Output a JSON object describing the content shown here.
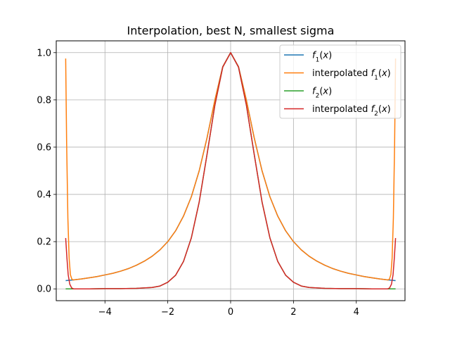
{
  "chart_data": {
    "type": "line",
    "title": "Interpolation, best N, smallest sigma",
    "xlabel": "",
    "ylabel": "",
    "xlim": [
      -5.55,
      5.55
    ],
    "ylim": [
      -0.05,
      1.05
    ],
    "grid": true,
    "legend_position": "top-right",
    "x_ticks": [
      -4,
      -2,
      0,
      2,
      4
    ],
    "x_tick_labels": [
      "−4",
      "−2",
      "0",
      "2",
      "4"
    ],
    "y_ticks": [
      0.0,
      0.2,
      0.4,
      0.6,
      0.8,
      1.0
    ],
    "y_tick_labels": [
      "0.0",
      "0.2",
      "0.4",
      "0.6",
      "0.8",
      "1.0"
    ],
    "series": [
      {
        "name": "f1(x)",
        "legend_main": "f",
        "legend_sub": "1",
        "legend_rest": "(x)",
        "color": "#1f77b4",
        "x": [
          -5.25,
          -5.0,
          -4.75,
          -4.5,
          -4.25,
          -4.0,
          -3.75,
          -3.5,
          -3.25,
          -3.0,
          -2.75,
          -2.5,
          -2.25,
          -2.0,
          -1.75,
          -1.5,
          -1.25,
          -1.0,
          -0.75,
          -0.5,
          -0.25,
          0.0,
          0.25,
          0.5,
          0.75,
          1.0,
          1.25,
          1.5,
          1.75,
          2.0,
          2.25,
          2.5,
          2.75,
          3.0,
          3.25,
          3.5,
          3.75,
          4.0,
          4.25,
          4.5,
          4.75,
          5.0,
          5.25
        ],
        "y": [
          0.035,
          0.038,
          0.042,
          0.047,
          0.052,
          0.059,
          0.066,
          0.075,
          0.086,
          0.1,
          0.117,
          0.138,
          0.165,
          0.2,
          0.246,
          0.308,
          0.39,
          0.5,
          0.64,
          0.8,
          0.941,
          1.0,
          0.941,
          0.8,
          0.64,
          0.5,
          0.39,
          0.308,
          0.246,
          0.2,
          0.165,
          0.138,
          0.117,
          0.1,
          0.086,
          0.075,
          0.066,
          0.059,
          0.052,
          0.047,
          0.042,
          0.038,
          0.035
        ]
      },
      {
        "name": "interpolated f1(x)",
        "legend_main": "interpolated f",
        "legend_sub": "1",
        "legend_rest": "(x)",
        "color": "#ff7f0e",
        "x": [
          -5.25,
          -5.22,
          -5.18,
          -5.14,
          -5.1,
          -5.05,
          -5.0,
          -4.75,
          -4.5,
          -4.25,
          -4.0,
          -3.75,
          -3.5,
          -3.25,
          -3.0,
          -2.75,
          -2.5,
          -2.25,
          -2.0,
          -1.75,
          -1.5,
          -1.25,
          -1.0,
          -0.75,
          -0.5,
          -0.25,
          0.0,
          0.25,
          0.5,
          0.75,
          1.0,
          1.25,
          1.5,
          1.75,
          2.0,
          2.25,
          2.5,
          2.75,
          3.0,
          3.25,
          3.5,
          3.75,
          4.0,
          4.25,
          4.5,
          4.75,
          5.0,
          5.05,
          5.1,
          5.14,
          5.18,
          5.22,
          5.25
        ],
        "y": [
          0.975,
          0.62,
          0.3,
          0.13,
          0.06,
          0.04,
          0.038,
          0.042,
          0.047,
          0.052,
          0.059,
          0.066,
          0.075,
          0.086,
          0.1,
          0.117,
          0.138,
          0.165,
          0.2,
          0.246,
          0.308,
          0.39,
          0.5,
          0.64,
          0.8,
          0.941,
          1.0,
          0.941,
          0.8,
          0.64,
          0.5,
          0.39,
          0.308,
          0.246,
          0.2,
          0.165,
          0.138,
          0.117,
          0.1,
          0.086,
          0.075,
          0.066,
          0.059,
          0.052,
          0.047,
          0.042,
          0.038,
          0.04,
          0.06,
          0.13,
          0.3,
          0.62,
          0.975
        ]
      },
      {
        "name": "f2(x)",
        "legend_main": "f",
        "legend_sub": "2",
        "legend_rest": "(x)",
        "color": "#2ca02c",
        "x": [
          -5.25,
          -5.0,
          -4.5,
          -4.0,
          -3.5,
          -3.0,
          -2.5,
          -2.25,
          -2.0,
          -1.75,
          -1.5,
          -1.25,
          -1.0,
          -0.75,
          -0.5,
          -0.25,
          0.0,
          0.25,
          0.5,
          0.75,
          1.0,
          1.25,
          1.5,
          1.75,
          2.0,
          2.25,
          2.5,
          3.0,
          3.5,
          4.0,
          4.5,
          5.0,
          5.25
        ],
        "y": [
          0.0,
          0.0,
          0.0,
          0.001,
          0.001,
          0.002,
          0.006,
          0.012,
          0.028,
          0.058,
          0.116,
          0.216,
          0.368,
          0.57,
          0.779,
          0.939,
          1.0,
          0.939,
          0.779,
          0.57,
          0.368,
          0.216,
          0.116,
          0.058,
          0.028,
          0.012,
          0.006,
          0.002,
          0.001,
          0.001,
          0.0,
          0.0,
          0.0
        ]
      },
      {
        "name": "interpolated f2(x)",
        "legend_main": "interpolated f",
        "legend_sub": "2",
        "legend_rest": "(x)",
        "color": "#d62728",
        "x": [
          -5.25,
          -5.21,
          -5.17,
          -5.12,
          -5.06,
          -5.0,
          -4.5,
          -4.0,
          -3.5,
          -3.0,
          -2.5,
          -2.25,
          -2.0,
          -1.75,
          -1.5,
          -1.25,
          -1.0,
          -0.75,
          -0.5,
          -0.25,
          0.0,
          0.25,
          0.5,
          0.75,
          1.0,
          1.25,
          1.5,
          1.75,
          2.0,
          2.25,
          2.5,
          3.0,
          3.5,
          4.0,
          4.5,
          5.0,
          5.06,
          5.12,
          5.17,
          5.21,
          5.25
        ],
        "y": [
          0.215,
          0.13,
          0.06,
          0.02,
          0.004,
          0.0,
          0.0,
          0.001,
          0.001,
          0.002,
          0.006,
          0.012,
          0.028,
          0.058,
          0.116,
          0.216,
          0.368,
          0.57,
          0.779,
          0.939,
          1.0,
          0.939,
          0.779,
          0.57,
          0.368,
          0.216,
          0.116,
          0.058,
          0.028,
          0.012,
          0.006,
          0.002,
          0.001,
          0.001,
          0.0,
          0.0,
          0.004,
          0.02,
          0.06,
          0.13,
          0.215
        ]
      }
    ]
  }
}
